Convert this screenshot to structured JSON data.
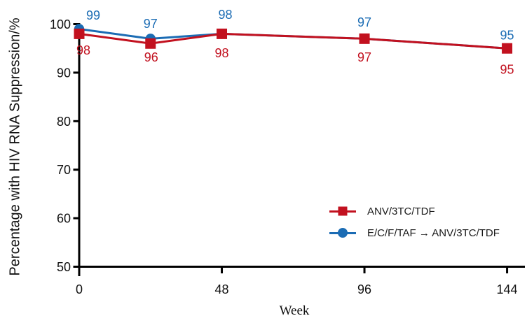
{
  "chart_data": {
    "type": "line",
    "title": "",
    "xlabel": "Week",
    "ylabel": "Percentage with HIV RNA Suppression/%",
    "x": [
      0,
      24,
      48,
      96,
      144
    ],
    "x_tick_values": [
      0,
      48,
      96,
      144
    ],
    "x_tick_marks": [
      48,
      96,
      144
    ],
    "y_tick_values": [
      50,
      60,
      70,
      80,
      90,
      100
    ],
    "xlim": [
      0,
      150
    ],
    "ylim": [
      50,
      100
    ],
    "grid": false,
    "axis_color": "#000000",
    "tick_label_color": "#111111",
    "legend_position": "inside-right-lower",
    "series": [
      {
        "name": "ANV/3TC/TDF",
        "color": "#c2111f",
        "marker": "square",
        "values": [
          98,
          96,
          98,
          97,
          95
        ],
        "label_position": "below",
        "label_offsets": [
          [
            6,
            23
          ],
          [
            1,
            19
          ],
          [
            0,
            27
          ],
          [
            0,
            26
          ],
          [
            0,
            30
          ]
        ]
      },
      {
        "name": "E/C/F/TAF → ANV/3TC/TDF",
        "color": "#1b6cb4",
        "marker": "circle",
        "values": [
          99,
          97,
          98,
          97,
          95
        ],
        "label_position": "above",
        "label_offsets": [
          [
            20,
            -20
          ],
          [
            0,
            -22
          ],
          [
            5,
            -28
          ],
          [
            0,
            -24
          ],
          [
            0,
            -19
          ]
        ]
      }
    ]
  }
}
